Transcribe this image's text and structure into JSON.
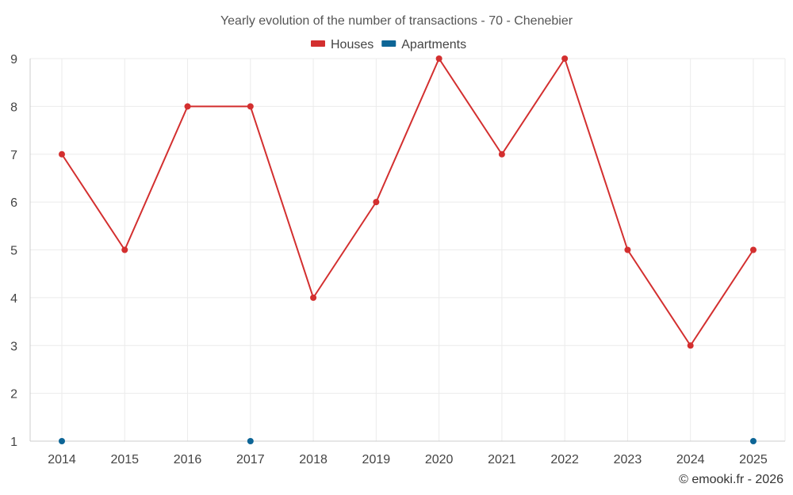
{
  "chart_data": {
    "type": "line",
    "title": "Yearly evolution of the number of transactions - 70 - Chenebier",
    "x": [
      "2014",
      "2015",
      "2016",
      "2017",
      "2018",
      "2019",
      "2020",
      "2021",
      "2022",
      "2023",
      "2024",
      "2025"
    ],
    "ylim": [
      1,
      9
    ],
    "yticks": [
      "1",
      "2",
      "3",
      "4",
      "5",
      "6",
      "7",
      "8",
      "9"
    ],
    "grid": true,
    "legend_position": "top-center",
    "series": [
      {
        "name": "Houses",
        "color": "#d32f2f",
        "points": [
          {
            "x": "2014",
            "y": 7
          },
          {
            "x": "2015",
            "y": 5
          },
          {
            "x": "2016",
            "y": 8
          },
          {
            "x": "2017",
            "y": 8
          },
          {
            "x": "2018",
            "y": 4
          },
          {
            "x": "2019",
            "y": 6
          },
          {
            "x": "2020",
            "y": 9
          },
          {
            "x": "2021",
            "y": 7
          },
          {
            "x": "2022",
            "y": 9
          },
          {
            "x": "2023",
            "y": 5
          },
          {
            "x": "2024",
            "y": 3
          },
          {
            "x": "2025",
            "y": 5
          }
        ]
      },
      {
        "name": "Apartments",
        "color": "#0d6596",
        "points": [
          {
            "x": "2014",
            "y": 1
          },
          {
            "x": "2017",
            "y": 1
          },
          {
            "x": "2025",
            "y": 1
          }
        ]
      }
    ]
  },
  "credit": "© emooki.fr - 2026"
}
